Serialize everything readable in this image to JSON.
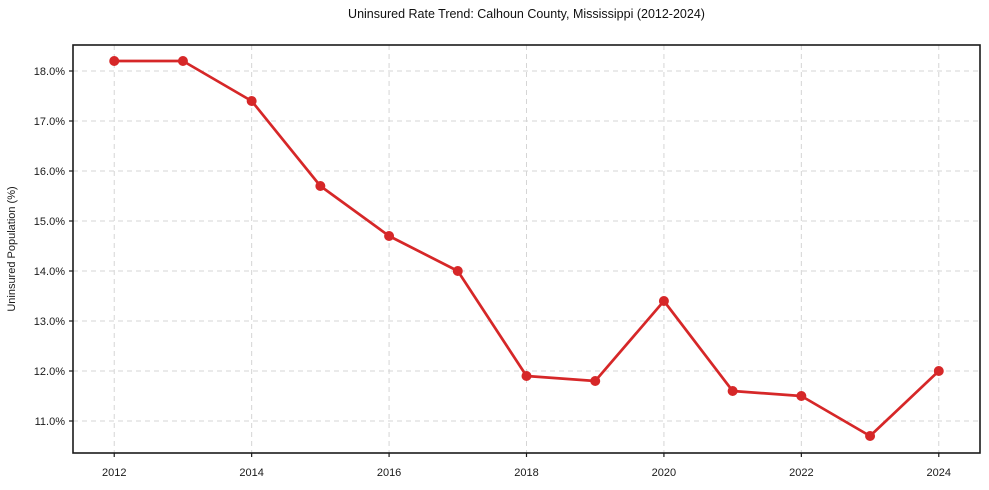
{
  "figure": {
    "background": "#ffffff"
  },
  "chart_data": {
    "type": "line",
    "title": "Uninsured Rate Trend: Calhoun County, Mississippi (2012-2024)",
    "xlabel": "",
    "ylabel": "Uninsured Population (%)",
    "x": [
      2012,
      2013,
      2014,
      2015,
      2016,
      2017,
      2018,
      2019,
      2020,
      2021,
      2022,
      2023,
      2024
    ],
    "values": [
      18.2,
      18.2,
      17.4,
      15.7,
      14.7,
      14.0,
      11.9,
      11.8,
      13.4,
      11.6,
      11.5,
      10.7,
      12.0
    ],
    "unit": "%",
    "xticks": {
      "values": [
        2012,
        2014,
        2016,
        2018,
        2020,
        2022,
        2024
      ],
      "labels": [
        "2012",
        "2014",
        "2016",
        "2018",
        "2020",
        "2022",
        "2024"
      ]
    },
    "yticks": {
      "values": [
        11,
        12,
        13,
        14,
        15,
        16,
        17,
        18
      ],
      "labels": [
        "11.0%",
        "12.0%",
        "13.0%",
        "14.0%",
        "15.0%",
        "16.0%",
        "17.0%",
        "18.0%"
      ]
    },
    "xlim": [
      2011.4,
      2024.6
    ],
    "ylim": [
      10.36,
      18.52
    ],
    "grid": true,
    "grid_style": "dashed",
    "legend": false,
    "marker": "o",
    "line_width": 2.7,
    "marker_radius": 5,
    "colors": {
      "line": "#d62728",
      "marker": "#d62728",
      "grid": "#d5d5d5",
      "spine": "#1a1a1a",
      "text": "#1a1a1a"
    }
  }
}
